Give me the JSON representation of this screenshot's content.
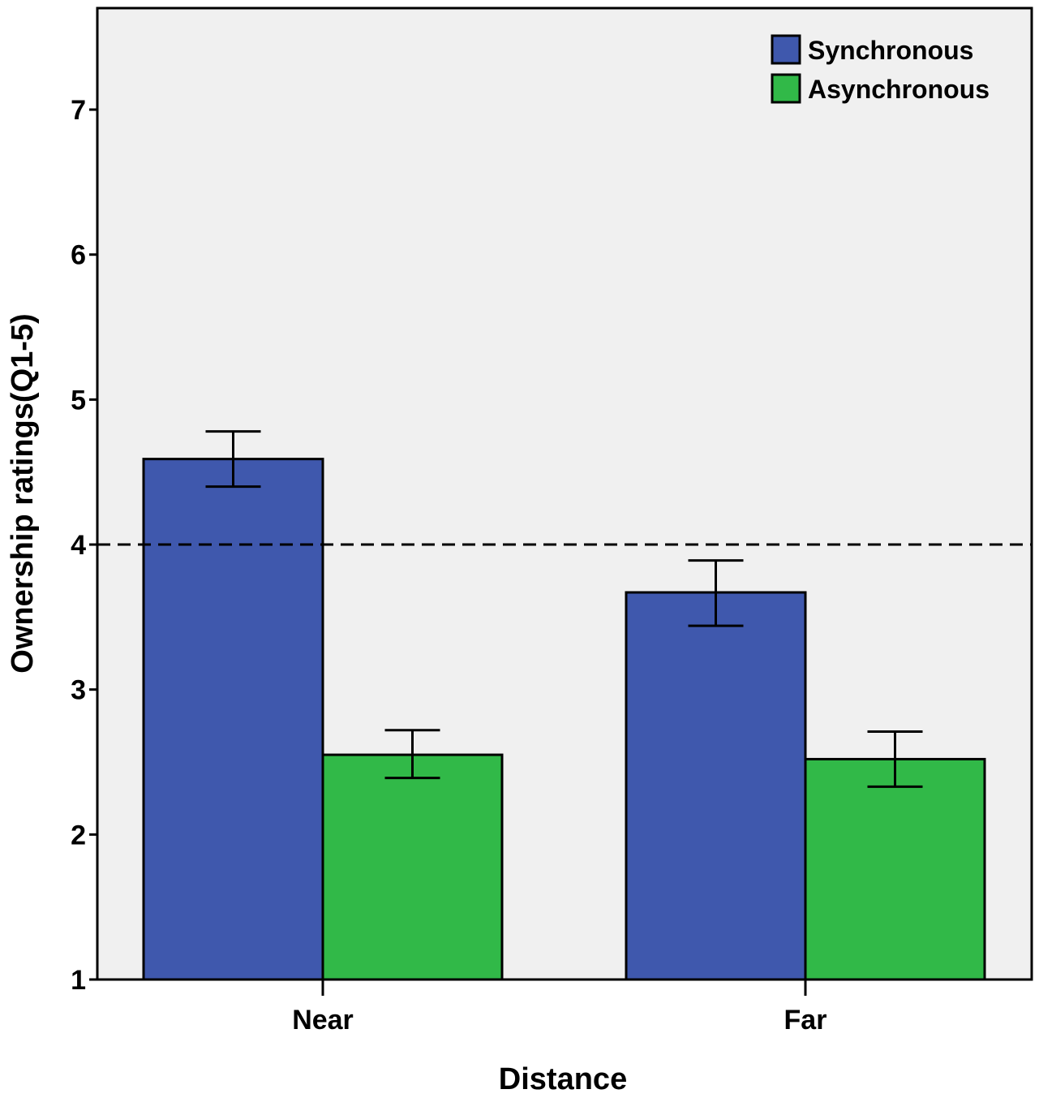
{
  "chart_data": {
    "type": "bar",
    "categories": [
      "Near",
      "Far"
    ],
    "series": [
      {
        "name": "Synchronous",
        "color": "#3f58ad",
        "values": [
          4.59,
          3.67
        ],
        "error_low": [
          4.4,
          3.44
        ],
        "error_high": [
          4.78,
          3.89
        ]
      },
      {
        "name": "Asynchronous",
        "color": "#31b948",
        "values": [
          2.55,
          2.52
        ],
        "error_low": [
          2.39,
          2.33
        ],
        "error_high": [
          2.72,
          2.71
        ]
      }
    ],
    "reference_line": 4,
    "xlabel": "Distance",
    "ylabel": "Ownership ratings(Q1-5)",
    "ylim": [
      1,
      7.7
    ],
    "yticks": [
      1,
      2,
      3,
      4,
      5,
      6,
      7
    ],
    "legend_position": "top-right",
    "background": "#f0f0f0"
  }
}
